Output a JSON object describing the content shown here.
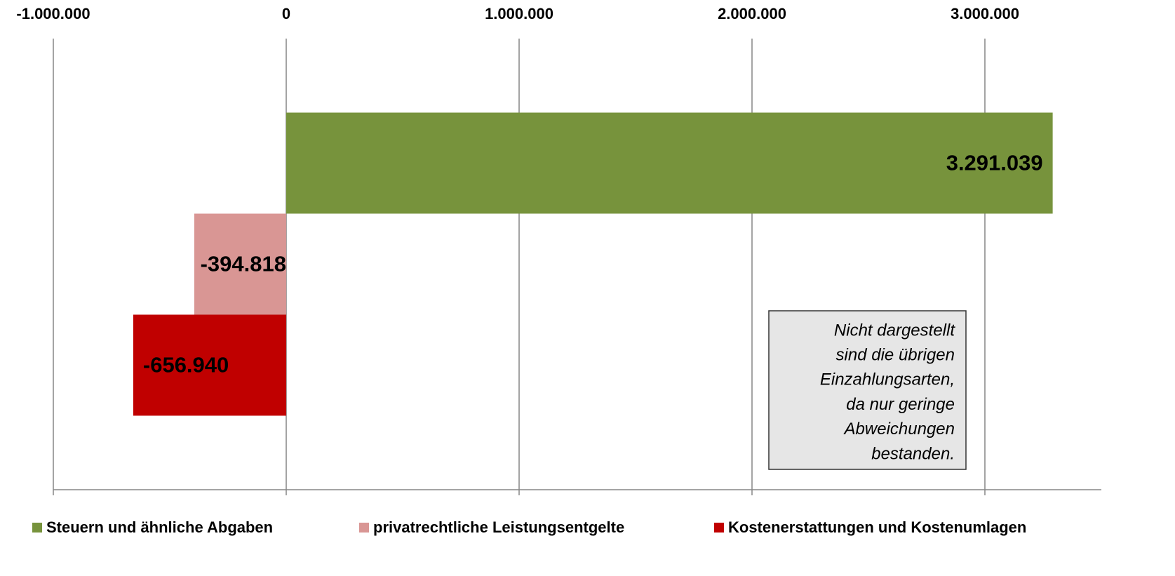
{
  "chart_data": {
    "type": "bar",
    "orientation": "horizontal",
    "categories": [
      null
    ],
    "series": [
      {
        "name": "Steuern und ähnliche Abgaben",
        "color": "#77933c",
        "values": [
          3291039
        ],
        "value_labels": [
          "3.291.039"
        ]
      },
      {
        "name": "privatrechtliche Leistungsentgelte",
        "color": "#d99694",
        "values": [
          -394818
        ],
        "value_labels": [
          "-394.818"
        ]
      },
      {
        "name": "Kostenerstattungen und Kostenumlagen",
        "color": "#c00000",
        "values": [
          -656940
        ],
        "value_labels": [
          "-656.940"
        ]
      }
    ],
    "xlim": [
      -1000000,
      3500000
    ],
    "xticks": [
      {
        "value": -1000000,
        "label": "-1.000.000"
      },
      0,
      {
        "value": 1000000,
        "label": "1.000.000"
      },
      {
        "value": 2000000,
        "label": "2.000.000"
      },
      {
        "value": 3000000,
        "label": "3.000.000"
      }
    ],
    "grid": true,
    "legend": "bottom",
    "annotation": [
      "Nicht dargestellt",
      "sind die übrigen",
      "Einzahlungsarten,",
      "da nur geringe",
      "Abweichungen",
      "bestanden."
    ]
  }
}
